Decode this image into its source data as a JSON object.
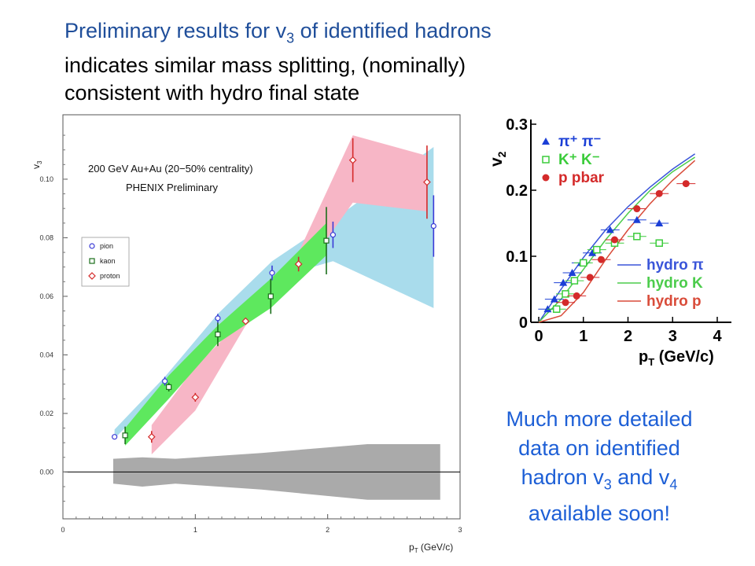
{
  "slide": {
    "title_line1_a": "Preliminary results for v",
    "title_line1_sub": "3",
    "title_line1_b": " of identified hadrons",
    "title_line2": "indicates similar mass splitting, (nominally)",
    "title_line3": "consistent with hydro final state",
    "note_line1": "Much more detailed",
    "note_line2": "data on identified",
    "note_line3_a": "hadron v",
    "note_line3_sub1": "3",
    "note_line3_b": " and v",
    "note_line3_sub2": "4",
    "note_line4": "available soon!"
  },
  "chart_data": [
    {
      "type": "scatter",
      "annotation1": "200 GeV Au+Au (20−50% centrality)",
      "annotation2": "PHENIX Preliminary",
      "xlabel": "p",
      "xlabel_sub": "T",
      "xlabel_unit": " (GeV/c)",
      "ylabel": "v",
      "ylabel_sub": "3",
      "xlim": [
        0,
        3
      ],
      "ylim": [
        -0.016,
        0.122
      ],
      "xticks": [
        0,
        1,
        2,
        3
      ],
      "yticks": [
        0.0,
        0.02,
        0.04,
        0.06,
        0.08,
        0.1
      ],
      "xtick_labels": [
        "0",
        "1",
        "2",
        "3"
      ],
      "ytick_labels": [
        "0.00",
        "0.02",
        "0.04",
        "0.06",
        "0.08",
        "0.10"
      ],
      "legend": [
        "pion",
        "kaon",
        "proton"
      ],
      "legend_position": "left",
      "series": [
        {
          "name": "pion",
          "color": "#3b3bd6",
          "marker": "circle",
          "band_color": "#a9dcec",
          "x": [
            0.39,
            0.77,
            1.17,
            1.58,
            2.04,
            2.8
          ],
          "y": [
            0.012,
            0.031,
            0.0525,
            0.068,
            0.081,
            0.084
          ],
          "err": [
            0.0005,
            0.0015,
            0.0015,
            0.0025,
            0.0045,
            0.0105
          ],
          "band_low": [
            0.0115,
            0.0285,
            0.05,
            0.066,
            0.072,
            0.056
          ],
          "band_high": [
            0.0145,
            0.0325,
            0.054,
            0.072,
            0.086,
            0.111
          ]
        },
        {
          "name": "kaon",
          "color": "#1a6e1a",
          "marker": "square",
          "band_color": "#5ee85e",
          "x": [
            0.47,
            0.8,
            1.17,
            1.57,
            1.99
          ],
          "y": [
            0.0125,
            0.029,
            0.047,
            0.06,
            0.079
          ],
          "err": [
            0.003,
            0.0015,
            0.004,
            0.006,
            0.0115
          ],
          "band_low": [
            0.009,
            0.025,
            0.044,
            0.056,
            0.074
          ],
          "band_high": [
            0.015,
            0.033,
            0.05,
            0.066,
            0.085
          ]
        },
        {
          "name": "proton",
          "color": "#d42a2a",
          "marker": "diamond",
          "band_color": "#f7b6c6",
          "x": [
            0.67,
            1.0,
            1.38,
            1.78,
            2.19,
            2.75
          ],
          "y": [
            0.012,
            0.0255,
            0.0515,
            0.071,
            0.1065,
            0.099
          ],
          "err": [
            0.002,
            0.0015,
            0.001,
            0.0025,
            0.0075,
            0.0125
          ],
          "band_low": [
            0.006,
            0.021,
            0.05,
            0.066,
            0.092,
            0.089
          ],
          "band_high": [
            0.016,
            0.036,
            0.053,
            0.075,
            0.115,
            0.108
          ]
        },
        {
          "name": "systematic",
          "color": "#aaaaaa",
          "x": [
            0.38,
            0.6,
            0.85,
            1.5,
            2.3,
            2.85
          ],
          "band_low": [
            -0.004,
            -0.005,
            -0.004,
            -0.006,
            -0.0095,
            -0.0095
          ],
          "band_high": [
            0.0045,
            0.005,
            0.0045,
            0.0065,
            0.0095,
            0.0095
          ]
        }
      ]
    },
    {
      "type": "scatter",
      "xlabel": "p",
      "xlabel_sub": "T",
      "xlabel_unit": " (GeV/c)",
      "ylabel": "v",
      "ylabel_sub": "2",
      "xlim": [
        0,
        4
      ],
      "ylim": [
        0,
        0.3
      ],
      "xticks": [
        0,
        1,
        2,
        3,
        4
      ],
      "yticks": [
        0,
        0.1,
        0.2,
        0.3
      ],
      "xtick_labels": [
        "0",
        "1",
        "2",
        "3",
        "4"
      ],
      "ytick_labels": [
        "0",
        "0.1",
        "0.2",
        "0.3"
      ],
      "legend_data": [
        {
          "label": "π⁺ π⁻",
          "color": "#1b3fd6",
          "marker": "triangle"
        },
        {
          "label": "K⁺ K⁻",
          "color": "#3bcc3b",
          "marker": "square-open"
        },
        {
          "label": "p  pbar",
          "color": "#d42a2a",
          "marker": "circle"
        }
      ],
      "legend_curves": [
        {
          "label": "hydro π",
          "color": "#3a55d9"
        },
        {
          "label": "hydro K",
          "color": "#4ccc4c"
        },
        {
          "label": "hydro p",
          "color": "#d94c3a"
        }
      ],
      "series": [
        {
          "name": "π⁺ π⁻",
          "color": "#1b3fd6",
          "marker": "triangle",
          "x": [
            0.2,
            0.35,
            0.55,
            0.75,
            0.95,
            1.2,
            1.6,
            2.2,
            2.7
          ],
          "y": [
            0.02,
            0.035,
            0.06,
            0.075,
            0.09,
            0.105,
            0.14,
            0.155,
            0.15
          ]
        },
        {
          "name": "K⁺ K⁻",
          "color": "#3bcc3b",
          "marker": "square-open",
          "x": [
            0.4,
            0.6,
            0.8,
            1.0,
            1.3,
            1.7,
            2.2,
            2.7
          ],
          "y": [
            0.02,
            0.043,
            0.063,
            0.09,
            0.11,
            0.12,
            0.13,
            0.12
          ]
        },
        {
          "name": "p  pbar",
          "color": "#d42a2a",
          "marker": "circle",
          "x": [
            0.6,
            0.85,
            1.15,
            1.4,
            1.7,
            2.2,
            2.7,
            3.3
          ],
          "y": [
            0.03,
            0.04,
            0.068,
            0.095,
            0.125,
            0.172,
            0.195,
            0.21
          ]
        },
        {
          "name": "hydro π",
          "color": "#3a55d9",
          "x": [
            0,
            0.5,
            1.0,
            1.5,
            2.0,
            2.5,
            3.0,
            3.5
          ],
          "y": [
            0,
            0.05,
            0.098,
            0.14,
            0.175,
            0.205,
            0.232,
            0.255
          ]
        },
        {
          "name": "hydro K",
          "color": "#4ccc4c",
          "x": [
            0,
            0.5,
            1.0,
            1.5,
            2.0,
            2.5,
            3.0,
            3.5
          ],
          "y": [
            0,
            0.035,
            0.08,
            0.125,
            0.165,
            0.2,
            0.228,
            0.25
          ]
        },
        {
          "name": "hydro p",
          "color": "#d94c3a",
          "x": [
            0,
            0.5,
            1.0,
            1.5,
            2.0,
            2.5,
            3.0,
            3.5
          ],
          "y": [
            0,
            0.01,
            0.045,
            0.095,
            0.14,
            0.18,
            0.215,
            0.245
          ]
        }
      ]
    }
  ]
}
